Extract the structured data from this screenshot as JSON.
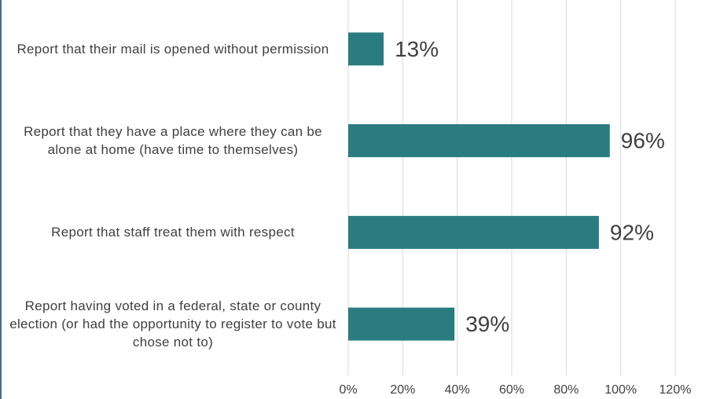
{
  "chart_data": {
    "type": "bar",
    "orientation": "horizontal",
    "categories": [
      "Report that their mail is opened without permission",
      "Report that they have a place where they can be alone at home (have time to themselves)",
      "Report that staff treat them with respect",
      "Report having voted in a federal, state or county election (or had the opportunity to register to vote but chose not to)"
    ],
    "values": [
      13,
      96,
      92,
      39
    ],
    "value_labels": [
      "13%",
      "96%",
      "92%",
      "39%"
    ],
    "color": "#2a7c80",
    "xlim": [
      0,
      120
    ],
    "xticks": [
      {
        "value": 0,
        "label": "0%"
      },
      {
        "value": 20,
        "label": "20%"
      },
      {
        "value": 40,
        "label": "40%"
      },
      {
        "value": 60,
        "label": "60%"
      },
      {
        "value": 80,
        "label": "80%"
      },
      {
        "value": 100,
        "label": "100%"
      },
      {
        "value": 120,
        "label": "120%"
      }
    ],
    "grid": true
  }
}
